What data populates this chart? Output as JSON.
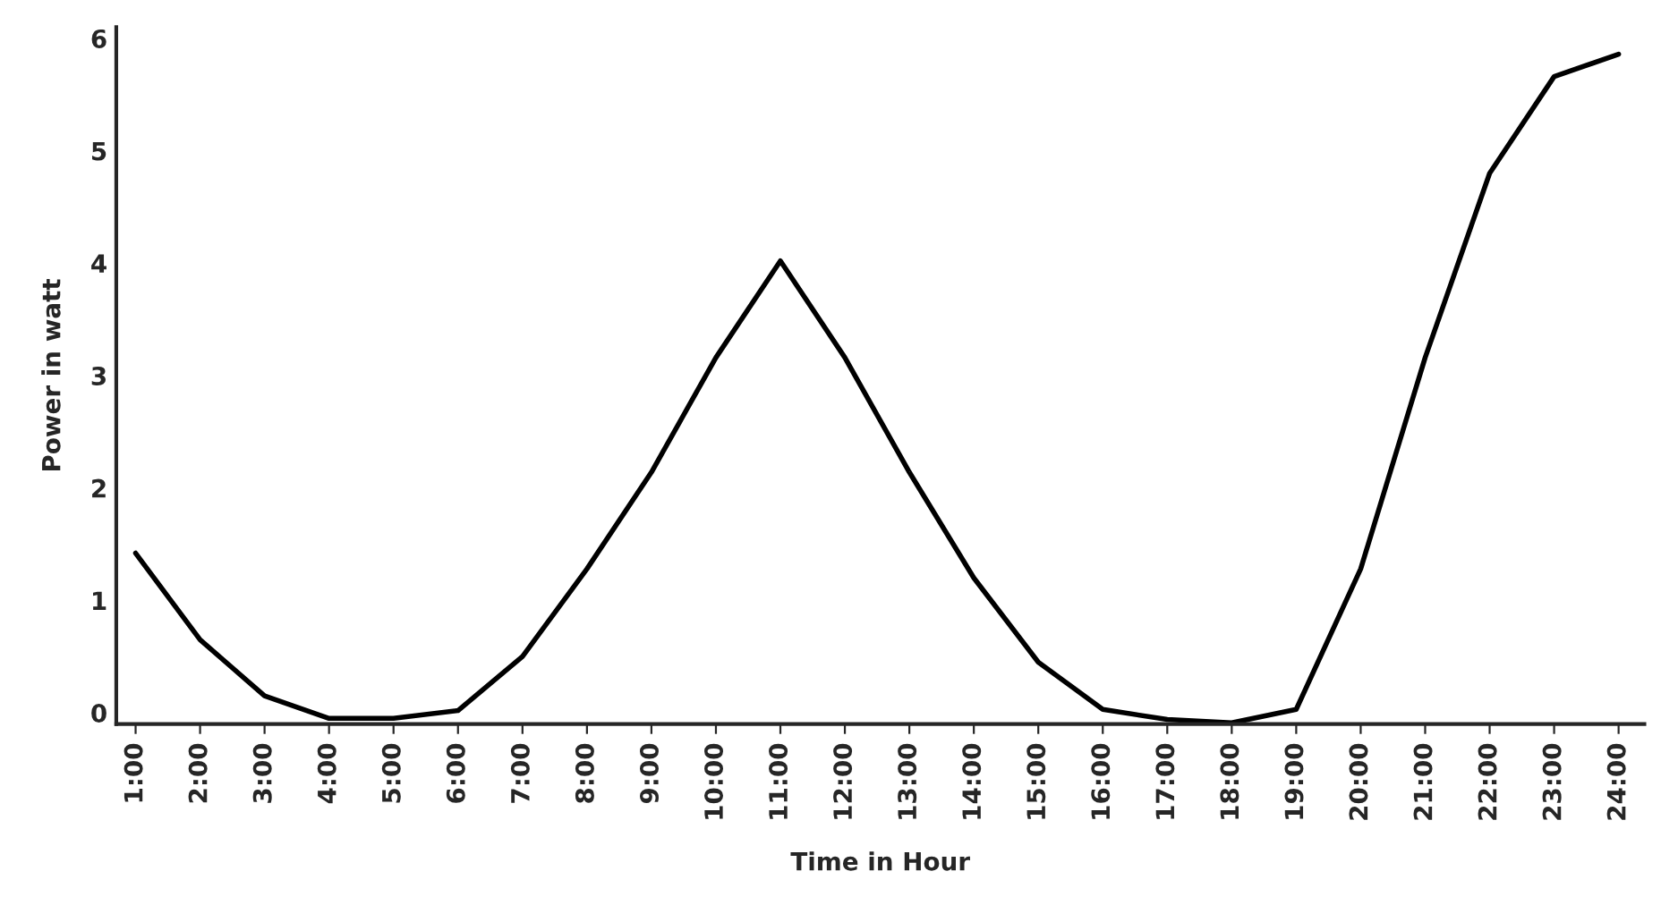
{
  "chart_data": {
    "type": "line",
    "xlabel": "Time in Hour",
    "ylabel": "Power in watt",
    "categories": [
      "1:00",
      "2:00",
      "3:00",
      "4:00",
      "5:00",
      "6:00",
      "7:00",
      "8:00",
      "9:00",
      "10:00",
      "11:00",
      "12:00",
      "13:00",
      "14:00",
      "15:00",
      "16:00",
      "17:00",
      "18:00",
      "19:00",
      "20:00",
      "21:00",
      "22:00",
      "23:00",
      "24:00"
    ],
    "series": [
      {
        "color": "#000000",
        "values": [
          1.42,
          0.65,
          0.15,
          -0.05,
          -0.05,
          0.02,
          0.5,
          1.28,
          2.14,
          3.16,
          4.02,
          3.16,
          2.14,
          1.2,
          0.45,
          0.03,
          -0.06,
          -0.09,
          0.03,
          1.28,
          3.16,
          4.8,
          5.66,
          5.86
        ]
      }
    ],
    "ylim": [
      -0.1,
      6.1
    ],
    "yticks": [
      0,
      1,
      2,
      3,
      4,
      5,
      6
    ],
    "grid": false,
    "marker": "none",
    "line_style": "solid"
  }
}
